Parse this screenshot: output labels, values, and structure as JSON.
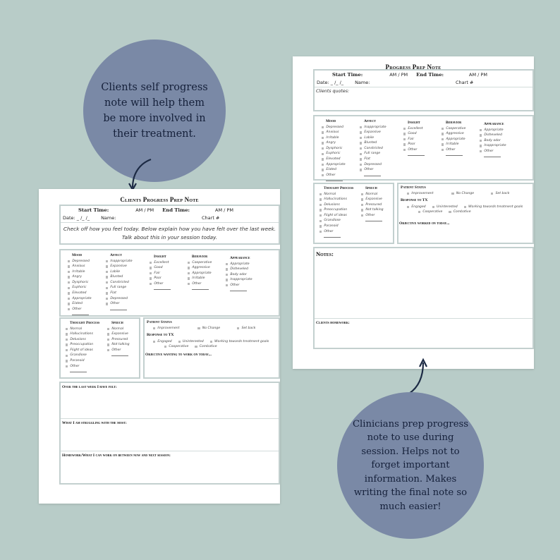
{
  "callouts": {
    "client": "Clients self progress note will help them be more involved in their treatment.",
    "clinician": "Clinicians prep progress note to use during session. Helps not to forget important information. Makes writing the final note so much easier!"
  },
  "colors": {
    "background": "#b8ccc8",
    "circle": "#7a89a6",
    "circle_text": "#15203a",
    "box_border": "#c3d0cf",
    "arrow": "#1c2a44"
  },
  "header": {
    "start_time": "Start Time:",
    "am_pm": "AM / PM",
    "end_time": "End Time:",
    "date": "Date: _ /_ /_",
    "name": "Name:",
    "chart": "Chart #"
  },
  "checklists": {
    "mood": {
      "title": "Mood",
      "items": [
        "Depressed",
        "Anxious",
        "Irritable",
        "Angry",
        "Dysphoric",
        "Euphoric",
        "Elevated",
        "Appropriate",
        "Elated",
        "Other"
      ]
    },
    "affect": {
      "title": "Affect",
      "items": [
        "Inappropriate",
        "Expansive",
        "Labile",
        "Blunted",
        "Constricted",
        "Full range",
        "Flat",
        "Depressed",
        "Other"
      ]
    },
    "insight": {
      "title": "Insight",
      "items": [
        "Excellent",
        "Good",
        "Fair",
        "Poor",
        "Other"
      ]
    },
    "behavior": {
      "title": "Behavior",
      "items": [
        "Cooperative",
        "Aggressive",
        "Appropriate",
        "Irritable",
        "Other"
      ]
    },
    "appearance": {
      "title": "Appearance",
      "items": [
        "Appropriate",
        "Disheveled",
        "Body odor",
        "Inappropriate",
        "Other"
      ]
    },
    "thought": {
      "title": "Thought Process",
      "items": [
        "Normal",
        "Hallucinations",
        "Delusions",
        "Preoccupation",
        "Flight of ideas",
        "Grandiose",
        "Paranoid",
        "Other"
      ]
    },
    "speech": {
      "title": "Speech",
      "items": [
        "Normal",
        "Expansive",
        "Pressured",
        "Not talking",
        "Other"
      ]
    },
    "patient_status": {
      "title": "Patient Status",
      "items": [
        "Improvement",
        "No Change",
        "Set back"
      ]
    },
    "response": {
      "title": "Response to TX",
      "row1": [
        "Engaged",
        "Uninterested",
        "Working towards treatment goals"
      ],
      "row2": [
        "Cooperative",
        "Combative"
      ]
    }
  },
  "client_doc": {
    "title": "Clients Progress Prep Note",
    "instructions_1": "Check off how you feel today. Below explain how you have felt over the last week.",
    "instructions_2": "Talk about this in your session today.",
    "objective": "Objective wanting to work on today...",
    "sections": [
      "Over the last week I have felt:",
      "What I am struggling with the most:",
      "Homework/What I can work on between now and next session:"
    ]
  },
  "clinician_doc": {
    "title": "Progress Prep Note",
    "quotes": "Clients quotes:",
    "objective": "Objective worked on today...",
    "notes": "Notes:",
    "homework": "Clients homework:"
  }
}
